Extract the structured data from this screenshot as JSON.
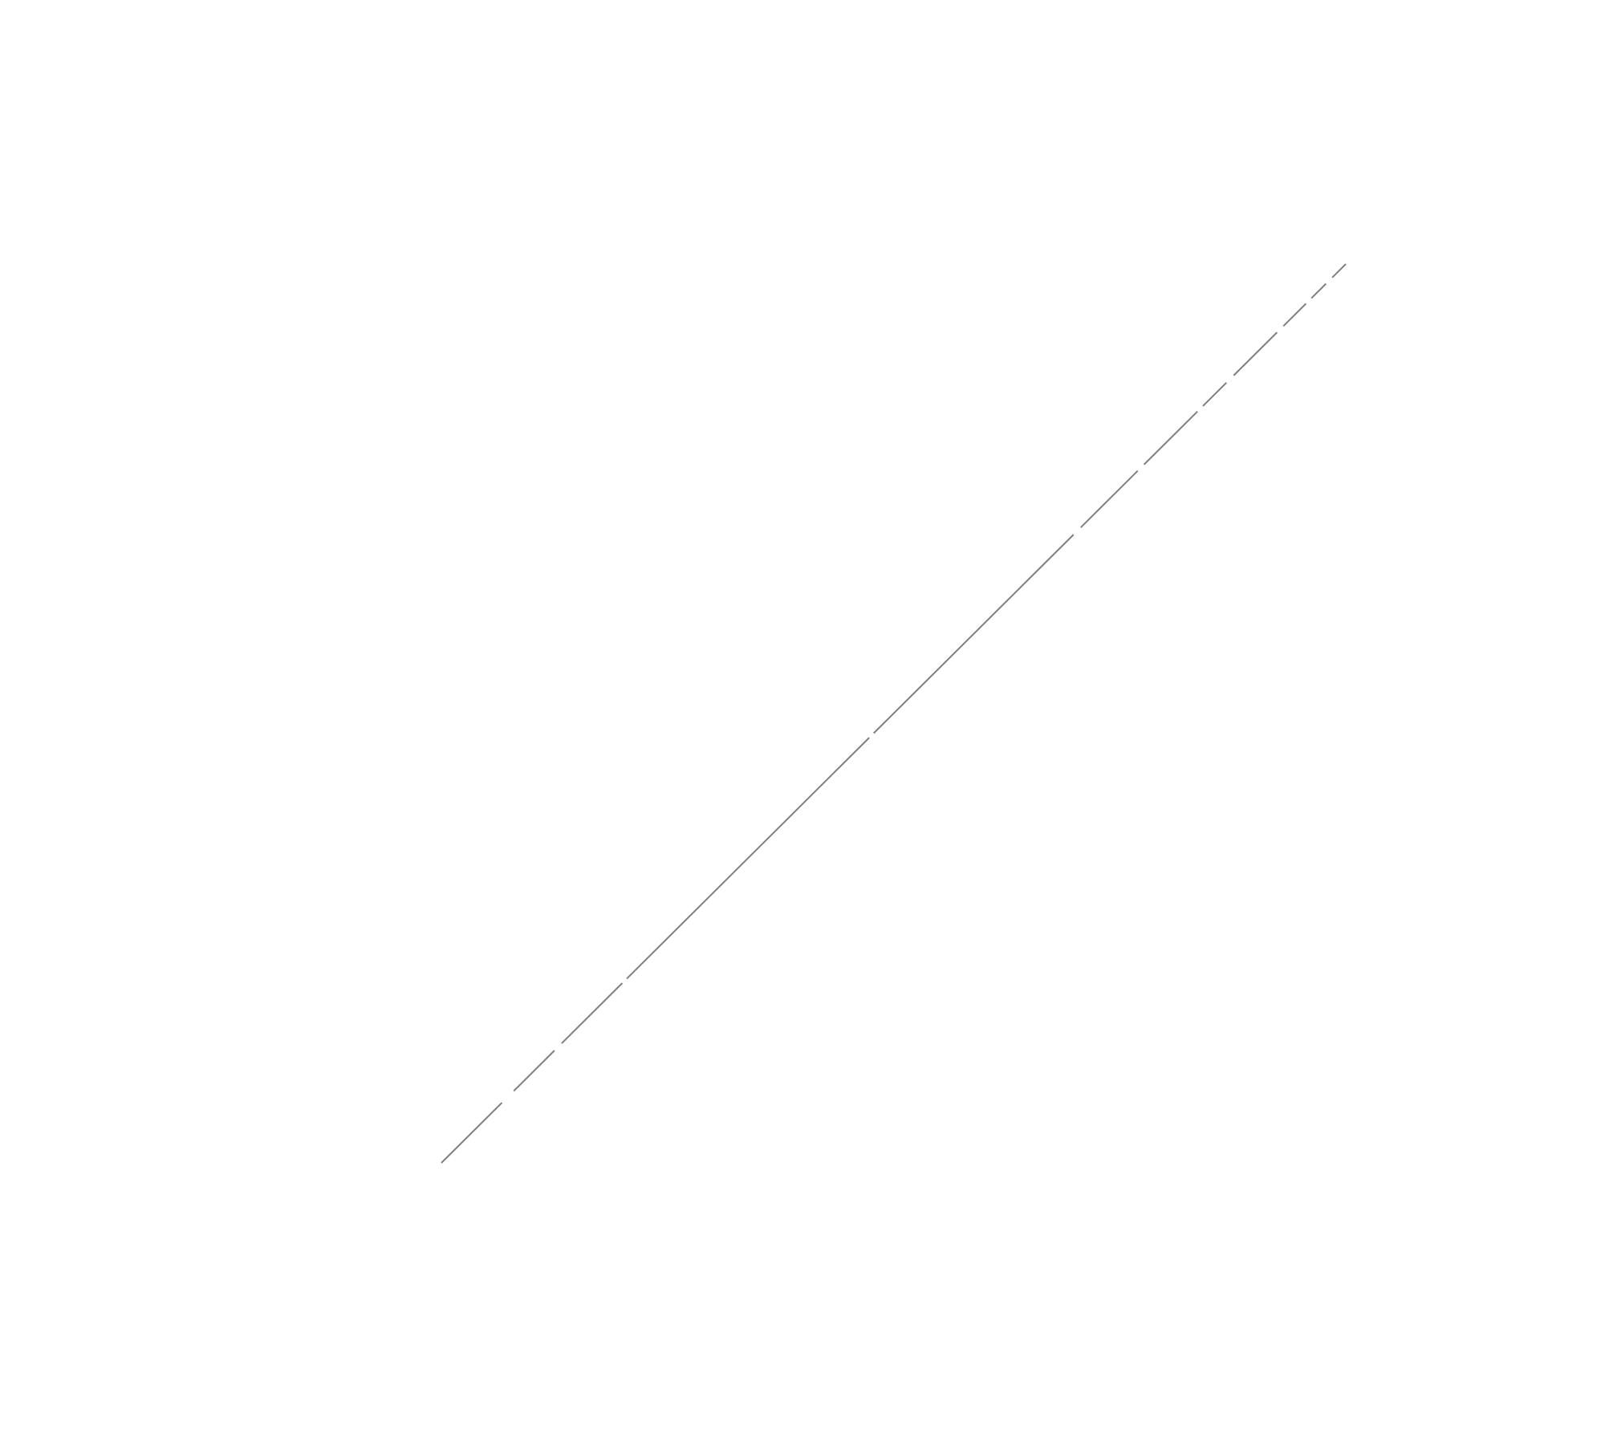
{
  "diagram": {
    "background_color": "#ffffff",
    "line_color": "#7f7f7f",
    "style": "dashed-diagonal"
  }
}
